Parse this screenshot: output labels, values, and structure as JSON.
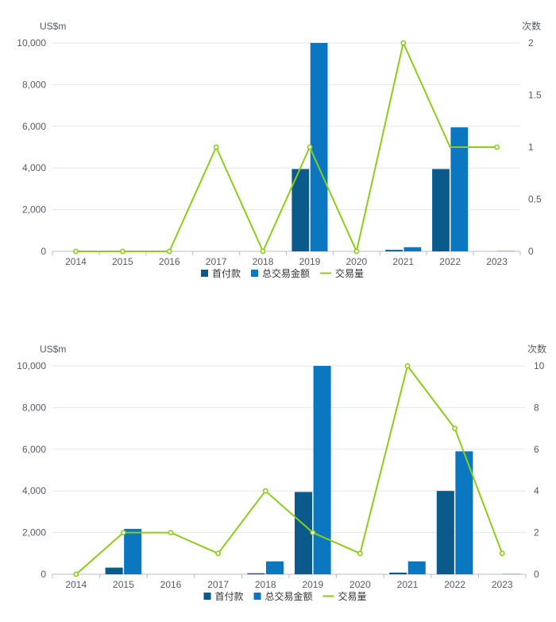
{
  "colors": {
    "down_payment": "#0b5a8c",
    "total_value": "#0a77c0",
    "count_line": "#8ccc1a",
    "grid": "#e3e6ef",
    "axis": "#b8bcc8",
    "text": "#555a66"
  },
  "chart_data": [
    {
      "type": "bar",
      "title": "",
      "left_axis_unit": "US$m",
      "right_axis_unit": "次数",
      "categories": [
        "2014",
        "2015",
        "2016",
        "2017",
        "2018",
        "2019",
        "2020",
        "2021",
        "2022",
        "2023"
      ],
      "series": [
        {
          "name": "首付款",
          "type": "bar",
          "axis": "left",
          "values": [
            0,
            0,
            0,
            0,
            0,
            3950,
            0,
            70,
            3950,
            0
          ]
        },
        {
          "name": "总交易金额",
          "type": "bar",
          "axis": "left",
          "values": [
            0,
            0,
            0,
            0,
            0,
            10000,
            0,
            200,
            5950,
            15
          ]
        },
        {
          "name": "交易量",
          "type": "line",
          "axis": "right",
          "values": [
            0,
            0,
            0,
            1,
            0,
            1,
            0,
            2,
            1,
            1
          ],
          "markers": [
            true,
            true,
            true,
            true,
            true,
            true,
            true,
            true,
            false,
            true
          ]
        }
      ],
      "left_ylim": [
        0,
        10000
      ],
      "left_ticks": [
        "0",
        "2,000",
        "4,000",
        "6,000",
        "8,000",
        "10,000"
      ],
      "right_ylim": [
        0,
        2
      ],
      "right_ticks": [
        "0",
        "0.5",
        "1",
        "1.5",
        "2"
      ],
      "legend": [
        "首付款",
        "总交易金额",
        "交易量"
      ],
      "legend_position": "bottom-center"
    },
    {
      "type": "bar",
      "title": "",
      "left_axis_unit": "US$m",
      "right_axis_unit": "次数",
      "categories": [
        "2014",
        "2015",
        "2016",
        "2017",
        "2018",
        "2019",
        "2020",
        "2021",
        "2022",
        "2023"
      ],
      "series": [
        {
          "name": "首付款",
          "type": "bar",
          "axis": "left",
          "values": [
            0,
            320,
            0,
            0,
            50,
            3950,
            0,
            80,
            4000,
            0
          ]
        },
        {
          "name": "总交易金额",
          "type": "bar",
          "axis": "left",
          "values": [
            0,
            2180,
            0,
            0,
            620,
            10000,
            0,
            620,
            5900,
            15
          ]
        },
        {
          "name": "交易量",
          "type": "line",
          "axis": "right",
          "values": [
            0,
            2,
            2,
            1,
            4,
            2,
            1,
            10,
            7,
            1
          ],
          "markers": [
            true,
            true,
            true,
            true,
            true,
            true,
            true,
            true,
            true,
            true
          ]
        }
      ],
      "left_ylim": [
        0,
        10000
      ],
      "left_ticks": [
        "0",
        "2,000",
        "4,000",
        "6,000",
        "8,000",
        "10,000"
      ],
      "right_ylim": [
        0,
        10
      ],
      "right_ticks": [
        "0",
        "2",
        "4",
        "6",
        "8",
        "10"
      ],
      "legend": [
        "首付款",
        "总交易金额",
        "交易量"
      ],
      "legend_position": "bottom-center"
    }
  ]
}
